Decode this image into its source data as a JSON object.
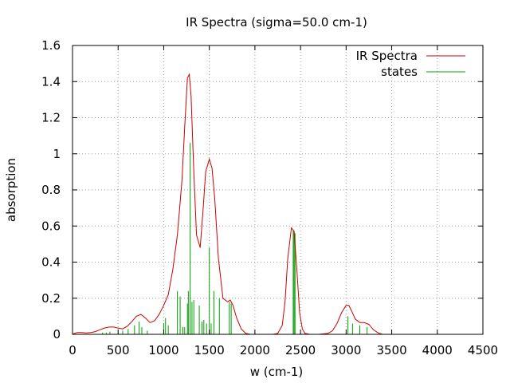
{
  "chart_data": {
    "type": "line",
    "title": "IR Spectra (sigma=50.0 cm-1)",
    "xlabel": "w (cm-1)",
    "ylabel": "absorption",
    "xlim": [
      0,
      4500
    ],
    "ylim": [
      0,
      1.6
    ],
    "grid": true,
    "legend_position": "top-right",
    "x_ticks": [
      0,
      500,
      1000,
      1500,
      2000,
      2500,
      3000,
      3500,
      4000,
      4500
    ],
    "x_tick_labels": [
      "0",
      "500",
      "1000",
      "1500",
      "2000",
      "2500",
      "3000",
      "3500",
      "4000",
      "4500"
    ],
    "y_ticks": [
      0,
      0.2,
      0.4,
      0.6,
      0.8,
      1.0,
      1.2,
      1.4,
      1.6
    ],
    "y_tick_labels": [
      "0",
      "0.2",
      "0.4",
      "0.6",
      "0.8",
      "1",
      "1.2",
      "1.4",
      "1.6"
    ],
    "series": [
      {
        "name": "IR Spectra",
        "kind": "line",
        "color": "#cc0000",
        "x": [
          0,
          50,
          100,
          150,
          200,
          250,
          300,
          350,
          400,
          450,
          500,
          550,
          600,
          650,
          700,
          750,
          800,
          850,
          900,
          950,
          1000,
          1050,
          1100,
          1150,
          1200,
          1230,
          1260,
          1280,
          1300,
          1330,
          1360,
          1400,
          1430,
          1460,
          1500,
          1530,
          1560,
          1600,
          1650,
          1700,
          1730,
          1760,
          1800,
          1850,
          1900,
          1950,
          2000,
          2100,
          2200,
          2250,
          2300,
          2330,
          2360,
          2400,
          2430,
          2460,
          2490,
          2520,
          2550,
          2600,
          2700,
          2800,
          2850,
          2900,
          2950,
          3000,
          3030,
          3060,
          3100,
          3150,
          3200,
          3250,
          3300,
          3350,
          3400,
          3500,
          3700,
          4000,
          4500
        ],
        "y": [
          0.0,
          0.01,
          0.01,
          0.008,
          0.01,
          0.015,
          0.025,
          0.035,
          0.04,
          0.04,
          0.035,
          0.03,
          0.045,
          0.07,
          0.1,
          0.11,
          0.09,
          0.065,
          0.075,
          0.11,
          0.16,
          0.22,
          0.36,
          0.55,
          0.85,
          1.15,
          1.42,
          1.44,
          1.32,
          0.9,
          0.55,
          0.48,
          0.68,
          0.9,
          0.97,
          0.92,
          0.75,
          0.42,
          0.2,
          0.18,
          0.19,
          0.16,
          0.09,
          0.03,
          0.005,
          0.0,
          0.0,
          0.0,
          0.0,
          0.005,
          0.05,
          0.18,
          0.42,
          0.59,
          0.57,
          0.36,
          0.12,
          0.03,
          0.005,
          0.0,
          0.0,
          0.005,
          0.02,
          0.06,
          0.12,
          0.16,
          0.16,
          0.13,
          0.085,
          0.065,
          0.065,
          0.055,
          0.025,
          0.008,
          0.0,
          0.0,
          0.0,
          0.0,
          0.0
        ]
      },
      {
        "name": "states",
        "kind": "impulses",
        "color": "#00a000",
        "x": [
          330,
          370,
          410,
          550,
          610,
          680,
          730,
          760,
          820,
          1000,
          1020,
          1050,
          1150,
          1180,
          1210,
          1230,
          1260,
          1270,
          1290,
          1310,
          1330,
          1390,
          1420,
          1440,
          1470,
          1500,
          1520,
          1550,
          1610,
          1720,
          1740,
          2420,
          2430,
          2440,
          3020,
          3070,
          3150,
          3230
        ],
        "y": [
          0.01,
          0.01,
          0.015,
          0.02,
          0.03,
          0.05,
          0.07,
          0.04,
          0.02,
          0.06,
          0.09,
          0.05,
          0.24,
          0.21,
          0.04,
          0.04,
          0.17,
          0.24,
          1.06,
          0.18,
          0.19,
          0.16,
          0.07,
          0.08,
          0.06,
          0.48,
          0.06,
          0.24,
          0.2,
          0.18,
          0.17,
          0.58,
          0.57,
          0.56,
          0.1,
          0.06,
          0.05,
          0.04
        ]
      }
    ]
  }
}
